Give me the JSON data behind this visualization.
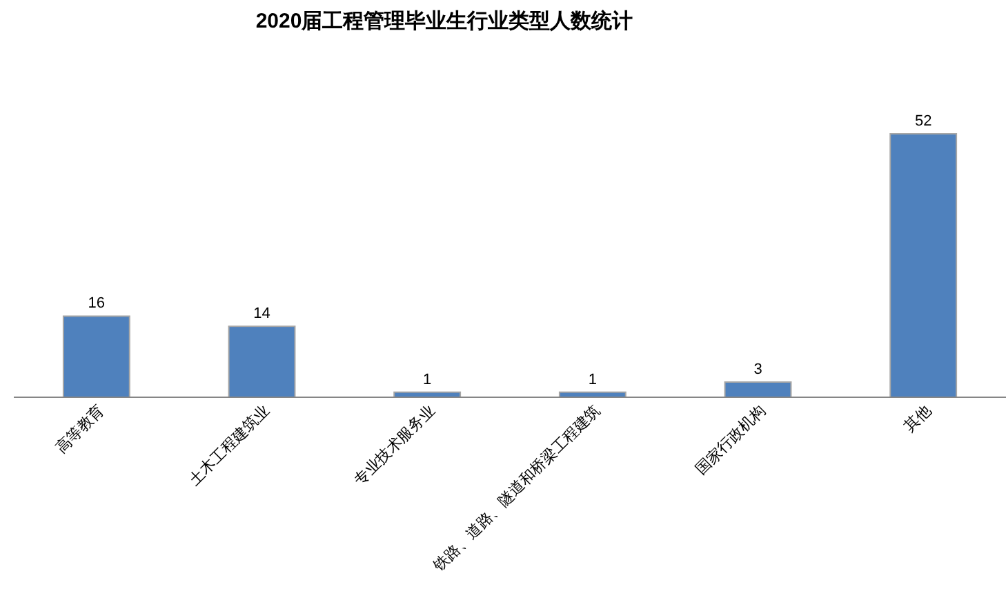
{
  "chart_data": {
    "type": "bar",
    "title": "2020届工程管理毕业生行业类型人数统计",
    "categories": [
      "高等教育",
      "土木工程建筑业",
      "专业技术服务业",
      "铁路、道路、隧道和桥梁工程建筑",
      "国家行政机构",
      "其他"
    ],
    "values": [
      16,
      14,
      1,
      1,
      3,
      52
    ],
    "color": "#4f81bd",
    "data_labels": true
  }
}
